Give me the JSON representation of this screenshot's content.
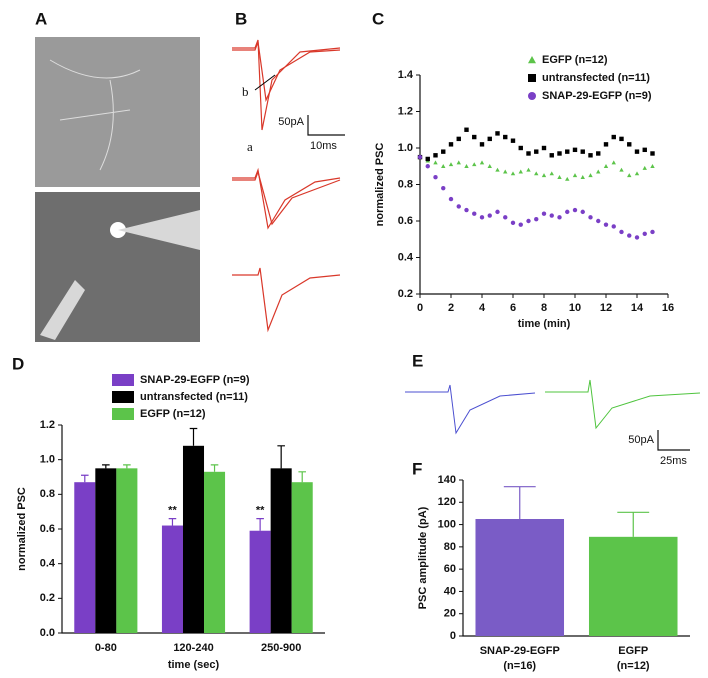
{
  "panel_labels": [
    "A",
    "B",
    "C",
    "D",
    "E",
    "F"
  ],
  "panel_b": {
    "trace_labels": [
      "a",
      "b"
    ],
    "scale_y": "50pA",
    "scale_x": "10ms"
  },
  "panel_e": {
    "scale_y": "50pA",
    "scale_x": "25ms"
  },
  "chart_data": [
    {
      "type": "scatter",
      "xlabel": "time (min)",
      "ylabel": "normalized PSC",
      "x": [
        0,
        0.5,
        1,
        1.5,
        2,
        2.5,
        3,
        3.5,
        4,
        4.5,
        5,
        5.5,
        6,
        6.5,
        7,
        7.5,
        8,
        8.5,
        9,
        9.5,
        10,
        10.5,
        11,
        11.5,
        12,
        12.5,
        13,
        13.5,
        14,
        14.5,
        15
      ],
      "xlim": [
        0,
        16
      ],
      "xticks": [
        0,
        2,
        4,
        6,
        8,
        10,
        12,
        14,
        16
      ],
      "ylim": [
        0.2,
        1.4
      ],
      "yticks": [
        0.2,
        0.4,
        0.6,
        0.8,
        {
          "value": 1,
          "label": "1.0"
        },
        1.2,
        1.4
      ],
      "legend": "upper right",
      "series": [
        {
          "name": "EGFP (n=12)",
          "color": "#5cc44a",
          "marker": "triangle",
          "values": [
            0.95,
            0.93,
            0.92,
            0.9,
            0.91,
            0.92,
            0.9,
            0.91,
            0.92,
            0.9,
            0.88,
            0.87,
            0.86,
            0.87,
            0.88,
            0.86,
            0.85,
            0.86,
            0.84,
            0.83,
            0.85,
            0.84,
            0.85,
            0.87,
            0.9,
            0.92,
            0.88,
            0.85,
            0.86,
            0.89,
            0.9
          ]
        },
        {
          "name": "untransfected (n=11)",
          "color": "#000000",
          "marker": "square",
          "values": [
            0.95,
            0.94,
            0.96,
            0.98,
            1.02,
            1.05,
            1.1,
            1.06,
            1.02,
            1.05,
            1.08,
            1.06,
            1.04,
            1.0,
            0.97,
            0.98,
            1.0,
            0.96,
            0.97,
            0.98,
            0.99,
            0.98,
            0.96,
            0.97,
            1.02,
            1.06,
            1.05,
            1.02,
            0.98,
            0.99,
            0.97
          ]
        },
        {
          "name": "SNAP-29-EGFP (n=9)",
          "color": "#7a3fc6",
          "marker": "circle",
          "values": [
            0.95,
            0.9,
            0.84,
            0.78,
            0.72,
            0.68,
            0.66,
            0.64,
            0.62,
            0.63,
            0.65,
            0.62,
            0.59,
            0.58,
            0.6,
            0.61,
            0.64,
            0.63,
            0.62,
            0.65,
            0.66,
            0.65,
            0.62,
            0.6,
            0.58,
            0.57,
            0.54,
            0.52,
            0.51,
            0.53,
            0.54
          ]
        }
      ]
    },
    {
      "type": "bar",
      "xlabel": "time (sec)",
      "ylabel": "normalized PSC",
      "categories": [
        "0-80",
        "120-240",
        "250-900"
      ],
      "ylim": [
        0,
        1.2
      ],
      "yticks": [
        {
          "value": 0,
          "label": "0.0"
        },
        0.2,
        0.4,
        0.6,
        0.8,
        {
          "value": 1,
          "label": "1.0"
        },
        1.2
      ],
      "legend": "upper left",
      "series": [
        {
          "name": "SNAP-29-EGFP (n=9)",
          "color": "#7a3fc6",
          "values": [
            0.87,
            0.62,
            0.59
          ],
          "errors": [
            0.04,
            0.04,
            0.07
          ],
          "value_notes": [
            null,
            "**",
            "**"
          ]
        },
        {
          "name": "untransfected (n=11)",
          "color": "#000000",
          "values": [
            0.95,
            1.08,
            0.95
          ],
          "errors": [
            0.02,
            0.1,
            0.13
          ]
        },
        {
          "name": "EGFP (n=12)",
          "color": "#5cc44a",
          "values": [
            0.95,
            0.93,
            0.87
          ],
          "errors": [
            0.02,
            0.04,
            0.06
          ]
        }
      ]
    },
    {
      "type": "bar",
      "ylabel": "PSC amplitude (pA)",
      "categories": [
        "SNAP-29-EGFP",
        "EGFP"
      ],
      "category_notes": [
        "(n=16)",
        "(n=12)"
      ],
      "ylim": [
        0,
        140
      ],
      "yticks": [
        0,
        20,
        40,
        60,
        80,
        100,
        120,
        140
      ],
      "series": [
        {
          "colors": [
            "#7a5cc6",
            "#5cc44a"
          ],
          "values": [
            105,
            89
          ],
          "errors": [
            29,
            22
          ]
        }
      ]
    }
  ]
}
